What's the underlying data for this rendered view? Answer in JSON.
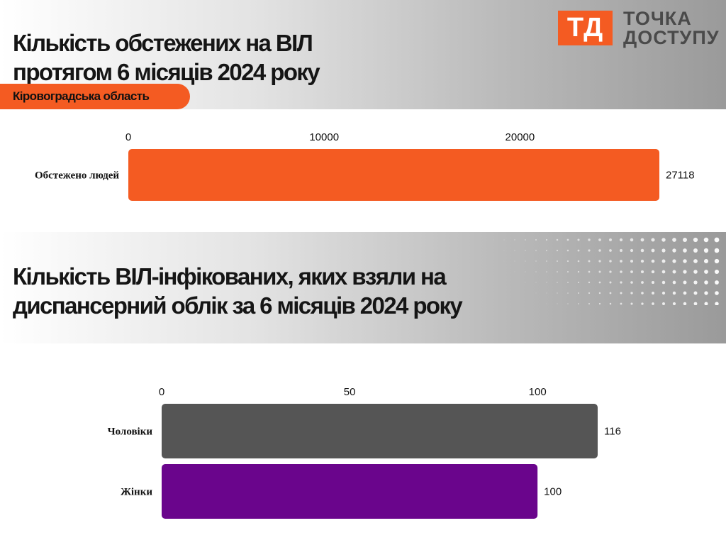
{
  "brand": {
    "logo_mark": "ТД",
    "logo_line1": "ТОЧКА",
    "logo_line2": "ДОСТУПУ",
    "accent": "#f45b22"
  },
  "section1": {
    "title_line1": "Кількість обстежених на ВІЛ",
    "title_line2": "протягом 6 місяців 2024 року",
    "region": "Кіровоградська область"
  },
  "section2": {
    "title_line1": "Кількість ВІЛ-інфікованих, яких взяли на",
    "title_line2": "диспансерний облік за 6 місяців 2024 року"
  },
  "chart_data": [
    {
      "type": "bar",
      "orientation": "horizontal",
      "categories": [
        "Обстежено людей"
      ],
      "values": [
        27118
      ],
      "colors": [
        "#f45b22"
      ],
      "xticks": [
        0,
        10000,
        20000
      ],
      "xlim": [
        0,
        27118
      ],
      "tick_position": "top",
      "grid": false
    },
    {
      "type": "bar",
      "orientation": "horizontal",
      "categories": [
        "Чоловіки",
        "Жінки"
      ],
      "values": [
        116,
        100
      ],
      "colors": [
        "#555555",
        "#6a058c"
      ],
      "xticks": [
        0,
        50,
        100
      ],
      "xlim": [
        0,
        116
      ],
      "tick_position": "top",
      "grid": false
    }
  ]
}
